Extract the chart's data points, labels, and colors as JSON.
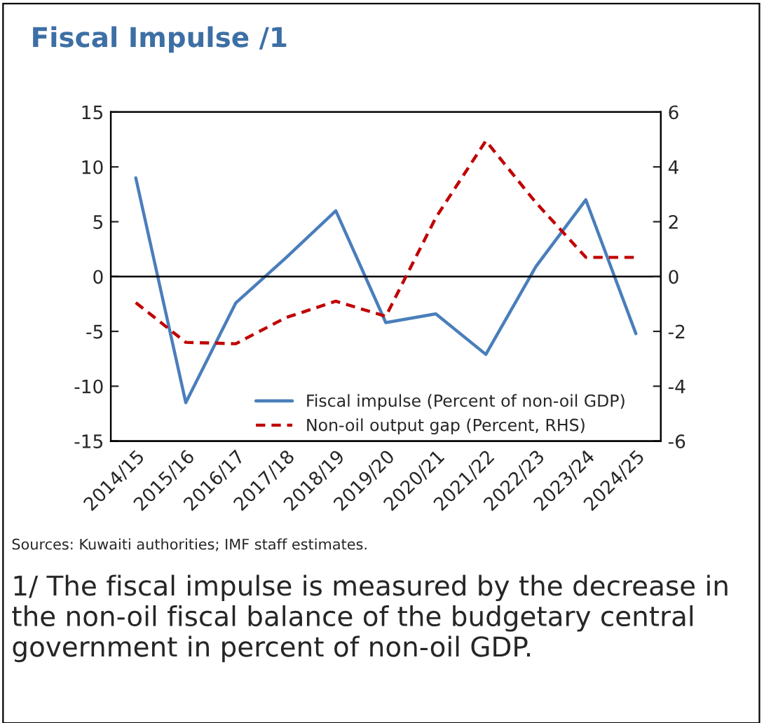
{
  "chart_data": {
    "type": "line",
    "title": "Fiscal Impulse /1",
    "categories": [
      "2014/15",
      "2015/16",
      "2016/17",
      "2017/18",
      "2018/19",
      "2019/20",
      "2020/21",
      "2021/22",
      "2022/23",
      "2023/24",
      "2024/25"
    ],
    "series": [
      {
        "name": "Fiscal impulse (Percent of non-oil GDP)",
        "color": "#4a7ebb",
        "line_style": "solid",
        "values": [
          9.0,
          -11.5,
          -2.4,
          1.7,
          6.0,
          -4.2,
          -3.4,
          -7.1,
          0.9,
          7.0,
          -5.2
        ]
      },
      {
        "name": "Non-oil output gap (Percent, RHS)",
        "color": "#c00000",
        "line_style": "dashed",
        "axis": "y2",
        "values": [
          -0.95,
          -2.4,
          -2.45,
          -1.5,
          -0.9,
          -1.45,
          2.15,
          4.95,
          2.7,
          0.7,
          0.7
        ]
      }
    ],
    "ylim": [
      -15,
      15
    ],
    "yticks": [
      -15,
      -10,
      -5,
      0,
      5,
      10,
      15
    ],
    "y2lim": [
      -6,
      6
    ],
    "y2ticks": [
      -6,
      -4,
      -2,
      0,
      2,
      4,
      6
    ],
    "ref_lines": [
      {
        "axis": "y",
        "value": 0,
        "color": "#000000",
        "line_style": "solid"
      }
    ],
    "legend": "bottom",
    "grid": false,
    "annotations": [
      "Sources: Kuwaiti authorities; IMF staff estimates.",
      "1/ The fiscal impulse is measured by the decrease in the non-oil fiscal balance of the budgetary central government in percent of non-oil GDP."
    ]
  }
}
